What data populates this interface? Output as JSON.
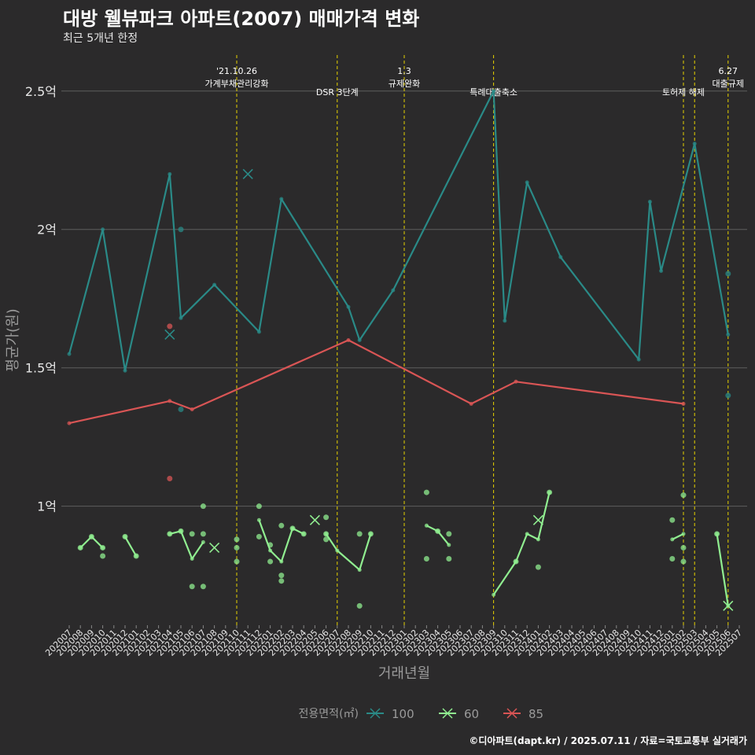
{
  "title": "대방 웰뷰파크 아파트(2007) 매매가격 변화",
  "subtitle": "최근 5개년 한정",
  "caption": "©디아파트(dapt.kr) / 2025.07.11 / 자료=국토교통부 실거래가",
  "chart_data": {
    "type": "line",
    "xlabel": "거래년월",
    "ylabel": "평균가(원)",
    "x_categories": [
      "202007",
      "202008",
      "202009",
      "202010",
      "202011",
      "202012",
      "202101",
      "202102",
      "202103",
      "202104",
      "202105",
      "202106",
      "202107",
      "202108",
      "202109",
      "202110",
      "202111",
      "202112",
      "202201",
      "202202",
      "202203",
      "202204",
      "202205",
      "202206",
      "202207",
      "202208",
      "202209",
      "202210",
      "202211",
      "202212",
      "202301",
      "202302",
      "202303",
      "202304",
      "202305",
      "202306",
      "202307",
      "202308",
      "202309",
      "202310",
      "202311",
      "202312",
      "202401",
      "202402",
      "202403",
      "202404",
      "202405",
      "202406",
      "202407",
      "202408",
      "202409",
      "202410",
      "202411",
      "202412",
      "202501",
      "202502",
      "202503",
      "202504",
      "202505",
      "202506",
      "202507"
    ],
    "y_ticks": [
      {
        "value": 1.0,
        "label": "1억"
      },
      {
        "value": 1.5,
        "label": "1.5억"
      },
      {
        "value": 2.0,
        "label": "2억"
      },
      {
        "value": 2.5,
        "label": "2.5억"
      }
    ],
    "ylim": [
      0.57,
      2.63
    ],
    "grid": true,
    "legend": {
      "title": "전용면적(㎡)",
      "position": "bottom"
    },
    "series": [
      {
        "name": "100",
        "color": "#2a8a87",
        "line": [
          [
            "202007",
            1.55
          ],
          [
            "202010",
            2.0
          ],
          [
            "202012",
            1.49
          ],
          [
            "202104",
            2.2
          ],
          [
            "202105",
            1.68
          ],
          [
            "202108",
            1.8
          ],
          [
            "202112",
            1.63
          ],
          [
            "202202",
            2.11
          ],
          [
            "202208",
            1.72
          ],
          [
            "202209",
            1.6
          ],
          [
            "202212",
            1.78
          ],
          [
            "202309",
            2.5
          ],
          [
            "202310",
            1.67
          ],
          [
            "202312",
            2.17
          ],
          [
            "202403",
            1.9
          ],
          [
            "202410",
            1.53
          ],
          [
            "202411",
            2.1
          ],
          [
            "202412",
            1.85
          ],
          [
            "202503",
            2.31
          ],
          [
            "202506",
            1.62
          ]
        ],
        "points": [
          [
            "202105",
            2.0
          ],
          [
            "202105",
            1.35
          ],
          [
            "202506",
            1.84
          ],
          [
            "202506",
            1.4
          ]
        ],
        "crosses": [
          [
            "202104",
            1.62
          ],
          [
            "202111",
            2.2
          ]
        ]
      },
      {
        "name": "60",
        "color": "#90ee90",
        "segments": [
          [
            [
              "202008",
              0.85
            ],
            [
              "202009",
              0.89
            ],
            [
              "202010",
              0.85
            ]
          ],
          [
            [
              "202012",
              0.89
            ],
            [
              "202101",
              0.82
            ]
          ],
          [
            [
              "202104",
              0.9
            ],
            [
              "202105",
              0.91
            ],
            [
              "202106",
              0.81
            ],
            [
              "202107",
              0.87
            ]
          ],
          [
            [
              "202112",
              0.95
            ],
            [
              "202201",
              0.84
            ],
            [
              "202202",
              0.8
            ],
            [
              "202203",
              0.92
            ],
            [
              "202204",
              0.9
            ]
          ],
          [
            [
              "202206",
              0.9
            ],
            [
              "202207",
              0.84
            ],
            [
              "202209",
              0.77
            ],
            [
              "202210",
              0.9
            ]
          ],
          [
            [
              "202303",
              0.93
            ],
            [
              "202304",
              0.91
            ],
            [
              "202305",
              0.86
            ]
          ],
          [
            [
              "202309",
              0.68
            ],
            [
              "202311",
              0.8
            ],
            [
              "202312",
              0.9
            ],
            [
              "202401",
              0.88
            ],
            [
              "202402",
              1.05
            ]
          ],
          [
            [
              "202501",
              0.88
            ],
            [
              "202502",
              0.9
            ]
          ],
          [
            [
              "202505",
              0.9
            ],
            [
              "202506",
              0.64
            ]
          ]
        ],
        "points": [
          [
            "202008",
            0.85
          ],
          [
            "202009",
            0.89
          ],
          [
            "202010",
            0.85
          ],
          [
            "202010",
            0.82
          ],
          [
            "202012",
            0.89
          ],
          [
            "202101",
            0.82
          ],
          [
            "202104",
            0.9
          ],
          [
            "202105",
            0.91
          ],
          [
            "202106",
            0.9
          ],
          [
            "202106",
            0.71
          ],
          [
            "202107",
            0.9
          ],
          [
            "202107",
            1.0
          ],
          [
            "202107",
            0.71
          ],
          [
            "202110",
            0.88
          ],
          [
            "202110",
            0.85
          ],
          [
            "202110",
            0.8
          ],
          [
            "202112",
            1.0
          ],
          [
            "202112",
            0.89
          ],
          [
            "202201",
            0.86
          ],
          [
            "202201",
            0.8
          ],
          [
            "202202",
            0.93
          ],
          [
            "202202",
            0.75
          ],
          [
            "202202",
            0.73
          ],
          [
            "202203",
            0.92
          ],
          [
            "202204",
            0.9
          ],
          [
            "202206",
            0.96
          ],
          [
            "202206",
            0.9
          ],
          [
            "202206",
            0.88
          ],
          [
            "202209",
            0.9
          ],
          [
            "202209",
            0.64
          ],
          [
            "202210",
            0.9
          ],
          [
            "202303",
            1.05
          ],
          [
            "202303",
            0.81
          ],
          [
            "202304",
            0.91
          ],
          [
            "202305",
            0.9
          ],
          [
            "202305",
            0.81
          ],
          [
            "202311",
            0.8
          ],
          [
            "202401",
            0.78
          ],
          [
            "202402",
            1.05
          ],
          [
            "202501",
            0.95
          ],
          [
            "202501",
            0.81
          ],
          [
            "202502",
            1.04
          ],
          [
            "202502",
            0.85
          ],
          [
            "202502",
            0.8
          ],
          [
            "202505",
            0.9
          ]
        ],
        "crosses": [
          [
            "202108",
            0.85
          ],
          [
            "202205",
            0.95
          ],
          [
            "202401",
            0.95
          ],
          [
            "202506",
            0.64
          ]
        ]
      },
      {
        "name": "85",
        "color": "#d95555",
        "line": [
          [
            "202007",
            1.3
          ],
          [
            "202104",
            1.38
          ],
          [
            "202106",
            1.35
          ],
          [
            "202208",
            1.6
          ],
          [
            "202307",
            1.37
          ],
          [
            "202311",
            1.45
          ],
          [
            "202502",
            1.37
          ]
        ],
        "points": [
          [
            "202104",
            1.65
          ],
          [
            "202104",
            1.1
          ]
        ],
        "crosses": []
      }
    ],
    "events": [
      {
        "x": "202110",
        "label": "'21.10.26\n가계부채관리강화"
      },
      {
        "x": "202207",
        "label": "DSR 3단계"
      },
      {
        "x": "202301",
        "label": "1.3\n규제완화"
      },
      {
        "x": "202309",
        "label": "특례대출축소"
      },
      {
        "x": "202502",
        "label": "토허제 해제"
      },
      {
        "x": "202503",
        "label": ""
      },
      {
        "x": "202506",
        "label": "6.27\n대출규제"
      }
    ],
    "event_color": "#e6d200"
  }
}
